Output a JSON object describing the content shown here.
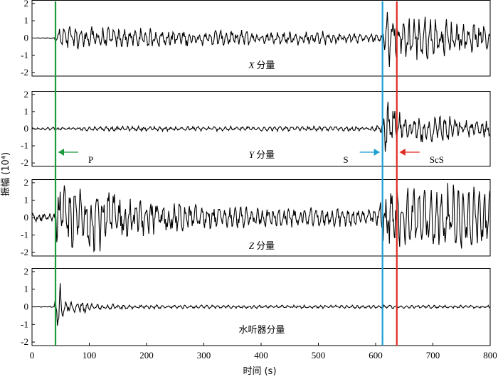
{
  "chart_data": {
    "type": "line",
    "xlabel": "时间 (s)",
    "ylabel": "振幅 (10⁴)",
    "xlim": [
      0,
      800
    ],
    "xticks": [
      0,
      100,
      200,
      300,
      400,
      500,
      600,
      700,
      800
    ],
    "panels": [
      {
        "label_italic": "X",
        "label": "分量",
        "ylim": [
          -2.2,
          2.2
        ],
        "yticks": [
          -2,
          -1,
          0,
          1,
          2
        ],
        "signal": [
          [
            0,
            0
          ],
          [
            38,
            0.05
          ],
          [
            42,
            0.6
          ],
          [
            45,
            -0.6
          ],
          [
            60,
            0.9
          ],
          [
            70,
            -0.8
          ],
          [
            100,
            -0.7
          ],
          [
            150,
            0.6
          ],
          [
            200,
            0.6
          ],
          [
            300,
            0.5
          ],
          [
            400,
            0.5
          ],
          [
            500,
            0.45
          ],
          [
            600,
            0.3
          ],
          [
            608,
            0.3
          ],
          [
            612,
            0.5
          ],
          [
            618,
            1.6
          ],
          [
            625,
            -2.1
          ],
          [
            635,
            1.2
          ],
          [
            650,
            -1.4
          ],
          [
            700,
            1.3
          ],
          [
            750,
            -1.0
          ],
          [
            800,
            0.9
          ]
        ],
        "annotations": []
      },
      {
        "label_italic": "Y",
        "label": "分量",
        "ylim": [
          -2.2,
          2.2
        ],
        "yticks": [
          -2,
          -1,
          0,
          1,
          2
        ],
        "signal": [
          [
            0,
            0.05
          ],
          [
            38,
            0.1
          ],
          [
            100,
            0.15
          ],
          [
            300,
            0.15
          ],
          [
            500,
            0.15
          ],
          [
            600,
            0.15
          ],
          [
            610,
            -0.3
          ],
          [
            614,
            1.0
          ],
          [
            620,
            2.0
          ],
          [
            630,
            -1.6
          ],
          [
            650,
            0.6
          ],
          [
            690,
            1.2
          ],
          [
            700,
            -1.0
          ],
          [
            740,
            0.8
          ],
          [
            800,
            0.5
          ]
        ],
        "annotations": [
          {
            "text": "P",
            "arrow_x": 41,
            "label_side": "right",
            "color": "#1a9a3c"
          },
          {
            "text": "S",
            "arrow_x": 612,
            "label_side": "left",
            "color": "#1b9fd3"
          },
          {
            "text": "ScS",
            "arrow_x": 637,
            "label_side": "right",
            "color": "#e02b20"
          }
        ]
      },
      {
        "label_italic": "Z",
        "label": "分量",
        "ylim": [
          -2.2,
          2.2
        ],
        "yticks": [
          -2,
          -1,
          0,
          1,
          2
        ],
        "signal": [
          [
            0,
            0.3
          ],
          [
            38,
            0.3
          ],
          [
            40,
            -1.0
          ],
          [
            45,
            2.0
          ],
          [
            55,
            -2.0
          ],
          [
            70,
            2.0
          ],
          [
            80,
            -1.8
          ],
          [
            100,
            2.2
          ],
          [
            150,
            -1.5
          ],
          [
            200,
            1.2
          ],
          [
            300,
            0.7
          ],
          [
            400,
            0.6
          ],
          [
            500,
            0.6
          ],
          [
            600,
            0.5
          ],
          [
            610,
            -1.2
          ],
          [
            620,
            2.3
          ],
          [
            630,
            -2.0
          ],
          [
            650,
            2.0
          ],
          [
            700,
            -2.0
          ],
          [
            750,
            2.0
          ],
          [
            800,
            1.7
          ]
        ],
        "annotations": []
      },
      {
        "label_italic": "",
        "label": "水听器分量",
        "ylim": [
          -2.2,
          2.2
        ],
        "yticks": [
          -2,
          -1,
          0,
          1,
          2
        ],
        "signal": [
          [
            0,
            0.0
          ],
          [
            38,
            0.05
          ],
          [
            40,
            -0.3
          ],
          [
            47,
            2.0
          ],
          [
            52,
            -0.6
          ],
          [
            60,
            0.4
          ],
          [
            80,
            -0.4
          ],
          [
            95,
            0.6
          ],
          [
            100,
            -0.2
          ],
          [
            200,
            0.12
          ],
          [
            400,
            0.1
          ],
          [
            600,
            0.1
          ],
          [
            800,
            0.1
          ]
        ],
        "annotations": []
      }
    ],
    "vertical_lines": [
      {
        "x": 41,
        "color": "#1a9a3c"
      },
      {
        "x": 612,
        "color": "#1b9fd3"
      },
      {
        "x": 637,
        "color": "#e02b20"
      }
    ]
  }
}
